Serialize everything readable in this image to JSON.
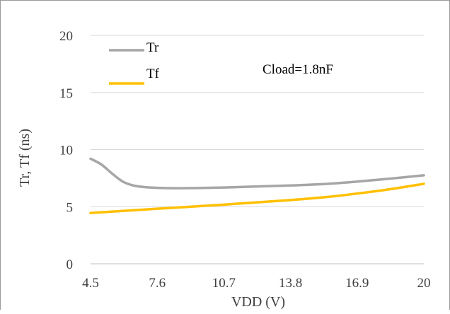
{
  "chart_data": {
    "type": "line",
    "xlabel": "VDD (V)",
    "ylabel": "Tr, Tf (ns)",
    "annotation": "Cload=1.8nF",
    "x_ticks": [
      "4.5",
      "7.6",
      "10.7",
      "13.8",
      "16.9",
      "20"
    ],
    "y_ticks": [
      "0",
      "5",
      "10",
      "15",
      "20"
    ],
    "xlim": [
      4.5,
      20
    ],
    "ylim": [
      0,
      20
    ],
    "grid": "horizontal",
    "legend_position": "top-left",
    "series": [
      {
        "name": "Tr",
        "color": "#a6a6a6",
        "x": [
          4.5,
          5.0,
          5.5,
          6.0,
          6.5,
          7.0,
          7.6,
          8.5,
          9.5,
          10.7,
          12.0,
          13.8,
          15.5,
          16.9,
          18.5,
          20.0
        ],
        "y": [
          9.2,
          8.7,
          7.9,
          7.2,
          6.85,
          6.72,
          6.65,
          6.62,
          6.63,
          6.68,
          6.76,
          6.86,
          7.0,
          7.2,
          7.47,
          7.75
        ]
      },
      {
        "name": "Tf",
        "color": "#ffc000",
        "x": [
          4.5,
          6.0,
          7.6,
          9.0,
          10.7,
          12.0,
          13.8,
          15.5,
          16.9,
          18.5,
          20.0
        ],
        "y": [
          4.45,
          4.63,
          4.82,
          4.98,
          5.18,
          5.35,
          5.58,
          5.85,
          6.15,
          6.55,
          7.0
        ]
      }
    ]
  }
}
